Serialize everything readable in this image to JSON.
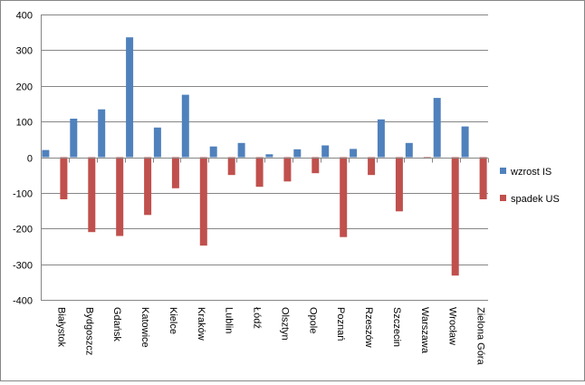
{
  "chart_data": {
    "type": "bar",
    "categories": [
      "Białystok",
      "Bydgoszcz",
      "Gdańsk",
      "Katowice",
      "Kielce",
      "Kraków",
      "Lublin",
      "Łódź",
      "Olsztyn",
      "Opole",
      "Poznań",
      "Rzeszów",
      "Szczecin",
      "Warszawa",
      "Wrocław",
      "Zielona Góra"
    ],
    "series": [
      {
        "name": "wzrost IS",
        "color": "#4f81bd",
        "values": [
          20,
          108,
          134,
          336,
          83,
          175,
          30,
          40,
          8,
          22,
          33,
          23,
          106,
          40,
          166,
          86
        ]
      },
      {
        "name": "spadek US",
        "color": "#c0504d",
        "values": [
          -118,
          -210,
          -221,
          -162,
          -87,
          -248,
          -50,
          -83,
          -68,
          -45,
          -224,
          -50,
          -152,
          -4,
          -332,
          -118
        ]
      }
    ],
    "yticks": [
      "400",
      "300",
      "200",
      "100",
      "0",
      "-100",
      "-200",
      "-300",
      "-400"
    ],
    "ylim": [
      -400,
      400
    ],
    "grid": true,
    "legend": "right",
    "title": "",
    "xlabel": "",
    "ylabel": ""
  }
}
